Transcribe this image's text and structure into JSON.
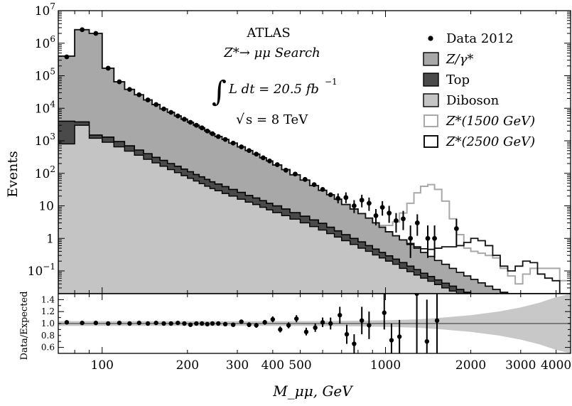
{
  "chart_data": {
    "type": "step-histogram",
    "x_scale": "log",
    "xlabel": "M_μμ, GeV",
    "xlim": [
      70,
      4500
    ],
    "x_ticks": [
      {
        "v": 100,
        "label": "100"
      },
      {
        "v": 200,
        "label": "200"
      },
      {
        "v": 300,
        "label": "300"
      },
      {
        "v": 400,
        "label": "400"
      },
      {
        "v": 500,
        "label": "500"
      },
      {
        "v": 1000,
        "label": "1000"
      },
      {
        "v": 2000,
        "label": "2000"
      },
      {
        "v": 3000,
        "label": "3000"
      },
      {
        "v": 4000,
        "label": "4000"
      }
    ],
    "top_panel": {
      "ylabel": "Events",
      "y_scale": "log",
      "ylim": [
        0.02,
        10000000
      ],
      "y_ticks": [
        {
          "v": 10000000,
          "base": "10",
          "exp": "7"
        },
        {
          "v": 1000000,
          "base": "10",
          "exp": "6"
        },
        {
          "v": 100000,
          "base": "10",
          "exp": "5"
        },
        {
          "v": 10000,
          "base": "10",
          "exp": "4"
        },
        {
          "v": 1000,
          "base": "10",
          "exp": "3"
        },
        {
          "v": 100,
          "base": "10",
          "exp": "2"
        },
        {
          "v": 10,
          "base": "10",
          "exp": ""
        },
        {
          "v": 1,
          "base": "1",
          "exp": ""
        },
        {
          "v": 0.1,
          "base": "10",
          "exp": "−1"
        }
      ],
      "annotation": {
        "experiment": "ATLAS",
        "search_title": "Z*→ μμ Search",
        "lumi_lhs": "L dt = 20.5 fb",
        "lumi_exp": "−1",
        "energy": "s = 8 TeV",
        "integral_symbol": "∫",
        "sqrt_symbol": "√"
      },
      "legend": [
        {
          "label": "Data 2012",
          "kind": "marker"
        },
        {
          "label": "Z/γ*",
          "kind": "fill",
          "color": "#a8a8a8"
        },
        {
          "label": "Top",
          "kind": "fill",
          "color": "#4a4a4a"
        },
        {
          "label": "Diboson",
          "kind": "fill",
          "color": "#c4c4c4"
        },
        {
          "label": "Z*(1500 GeV)",
          "kind": "line",
          "color": "#a8a8a8"
        },
        {
          "label": "Z*(2500 GeV)",
          "kind": "line",
          "color": "#111111"
        }
      ],
      "legend_position": "top-right",
      "bin_edges": [
        70,
        80,
        90,
        100,
        110,
        120,
        130,
        140,
        150,
        160,
        170,
        180,
        190,
        200,
        210,
        220,
        230,
        240,
        250,
        265,
        280,
        300,
        320,
        340,
        360,
        380,
        400,
        430,
        460,
        500,
        540,
        580,
        620,
        660,
        700,
        750,
        800,
        850,
        900,
        950,
        1000,
        1060,
        1120,
        1190,
        1260,
        1330,
        1410,
        1490,
        1580,
        1680,
        1780,
        1890,
        2000,
        2120,
        2250,
        2390,
        2540,
        2700,
        2870,
        3050,
        3240,
        3440,
        3650,
        3880,
        4120,
        4500
      ],
      "series": [
        {
          "name": "Diboson",
          "values": [
            800,
            3000,
            1200,
            900,
            650,
            480,
            360,
            270,
            210,
            165,
            130,
            105,
            85,
            70,
            58,
            48,
            40,
            34,
            29,
            24,
            20,
            16,
            13,
            11,
            9,
            7.5,
            6.2,
            5,
            3.9,
            3,
            2.3,
            1.8,
            1.4,
            1.1,
            0.85,
            0.65,
            0.5,
            0.4,
            0.31,
            0.25,
            0.2,
            0.16,
            0.12,
            0.095,
            0.075,
            0.06,
            0.048,
            0.038,
            0.03,
            0.024,
            0.02,
            0.018,
            0.016,
            0.015,
            0.015,
            0.015,
            0.015,
            0.015,
            0.015,
            0.015,
            0.015,
            0.015,
            0.015,
            0.015,
            0.015
          ]
        },
        {
          "name": "Top",
          "values": [
            4000,
            3800,
            1500,
            1300,
            950,
            700,
            520,
            400,
            310,
            250,
            200,
            165,
            135,
            112,
            92,
            78,
            65,
            55,
            47,
            39,
            32,
            26,
            21,
            17.5,
            14.5,
            12,
            10,
            8,
            6.2,
            4.8,
            3.7,
            2.9,
            2.2,
            1.7,
            1.3,
            1,
            0.78,
            0.6,
            0.47,
            0.37,
            0.29,
            0.23,
            0.18,
            0.14,
            0.11,
            0.085,
            0.067,
            0.053,
            0.042,
            0.034,
            0.027,
            0.022,
            0.018,
            0.016,
            0.015,
            0.015,
            0.015,
            0.015,
            0.015,
            0.015,
            0.015,
            0.015,
            0.015,
            0.015,
            0.015
          ]
        },
        {
          "name": "Z/γ*",
          "values": [
            400000,
            2600000,
            2000000,
            170000,
            65000,
            38000,
            26000,
            18000,
            13000,
            9500,
            7500,
            5800,
            4600,
            3700,
            3000,
            2500,
            2000,
            1650,
            1350,
            1100,
            850,
            650,
            500,
            390,
            300,
            240,
            180,
            130,
            90,
            62,
            42,
            30,
            22,
            16,
            11,
            8,
            5.8,
            4.2,
            3,
            2.2,
            1.6,
            1.2,
            0.9,
            0.65,
            0.5,
            0.37,
            0.28,
            0.21,
            0.16,
            0.12,
            0.09,
            0.07,
            0.055,
            0.043,
            0.034,
            0.027,
            0.022,
            0.018,
            0.016,
            0.015,
            0.015,
            0.015,
            0.015,
            0.015,
            0.015
          ]
        },
        {
          "name": "Z*(1500 GeV)",
          "kind": "line-only",
          "values": [
            400000,
            2600000,
            2000000,
            170000,
            65000,
            38000,
            26000,
            18000,
            13000,
            9500,
            7500,
            5800,
            4600,
            3700,
            3000,
            2500,
            2000,
            1650,
            1350,
            1100,
            850,
            650,
            500,
            390,
            300,
            240,
            180,
            130,
            90,
            62,
            42,
            30,
            22,
            16,
            11,
            8,
            5.8,
            4.2,
            3,
            2.5,
            2.5,
            3.2,
            6,
            12,
            25,
            40,
            45,
            32,
            14,
            4,
            1.3,
            0.5,
            0.4,
            0.35,
            0.3,
            0.25,
            0.12,
            0.07,
            0.04,
            0.08,
            0.12,
            0.12,
            0.12,
            0.12,
            0.05
          ]
        },
        {
          "name": "Z*(2500 GeV)",
          "kind": "line-only",
          "values": [
            400000,
            2600000,
            2000000,
            170000,
            65000,
            38000,
            26000,
            18000,
            13000,
            9500,
            7500,
            5800,
            4600,
            3700,
            3000,
            2500,
            2000,
            1650,
            1350,
            1100,
            850,
            650,
            500,
            390,
            300,
            240,
            180,
            130,
            90,
            62,
            42,
            30,
            22,
            16,
            11,
            8,
            5.8,
            4.2,
            3,
            2.2,
            1.6,
            1.2,
            0.9,
            0.7,
            0.55,
            0.48,
            0.46,
            0.5,
            0.55,
            0.55,
            0.6,
            0.75,
            1,
            0.85,
            0.6,
            0.3,
            0.14,
            0.1,
            0.14,
            0.2,
            0.18,
            0.08,
            0.06,
            0.05,
            0.02
          ]
        }
      ],
      "data_points": [
        {
          "x": 75,
          "y": 380000
        },
        {
          "x": 85,
          "y": 2600000
        },
        {
          "x": 95,
          "y": 2000000
        },
        {
          "x": 105,
          "y": 170000
        },
        {
          "x": 115,
          "y": 65000
        },
        {
          "x": 125,
          "y": 38000
        },
        {
          "x": 135,
          "y": 26000
        },
        {
          "x": 145,
          "y": 18000
        },
        {
          "x": 155,
          "y": 13000
        },
        {
          "x": 165,
          "y": 9500
        },
        {
          "x": 175,
          "y": 7500
        },
        {
          "x": 185,
          "y": 5800
        },
        {
          "x": 195,
          "y": 4600
        },
        {
          "x": 205,
          "y": 3700
        },
        {
          "x": 215,
          "y": 3000
        },
        {
          "x": 225,
          "y": 2500
        },
        {
          "x": 235,
          "y": 2000
        },
        {
          "x": 245,
          "y": 1650
        },
        {
          "x": 257,
          "y": 1350
        },
        {
          "x": 272,
          "y": 1100
        },
        {
          "x": 290,
          "y": 850
        },
        {
          "x": 310,
          "y": 650
        },
        {
          "x": 330,
          "y": 500
        },
        {
          "x": 350,
          "y": 390
        },
        {
          "x": 370,
          "y": 300
        },
        {
          "x": 390,
          "y": 240
        },
        {
          "x": 415,
          "y": 185
        },
        {
          "x": 445,
          "y": 125
        },
        {
          "x": 480,
          "y": 95
        },
        {
          "x": 520,
          "y": 65
        },
        {
          "x": 560,
          "y": 45
        },
        {
          "x": 600,
          "y": 32
        },
        {
          "x": 640,
          "y": 22
        },
        {
          "x": 680,
          "y": 17,
          "err": [
            12,
            24
          ]
        },
        {
          "x": 725,
          "y": 18,
          "err": [
            12,
            26
          ]
        },
        {
          "x": 775,
          "y": 10,
          "err": [
            6,
            15
          ]
        },
        {
          "x": 825,
          "y": 15,
          "err": [
            9,
            22
          ]
        },
        {
          "x": 875,
          "y": 12,
          "err": [
            7,
            18
          ]
        },
        {
          "x": 925,
          "y": 5,
          "err": [
            2.5,
            8
          ]
        },
        {
          "x": 975,
          "y": 9,
          "err": [
            5,
            14
          ]
        },
        {
          "x": 1030,
          "y": 6,
          "err": [
            3,
            10
          ]
        },
        {
          "x": 1090,
          "y": 3.5,
          "err": [
            1.5,
            6
          ]
        },
        {
          "x": 1155,
          "y": 4,
          "err": [
            1.8,
            7
          ]
        },
        {
          "x": 1225,
          "y": 1,
          "err": [
            0.25,
            2.5
          ]
        },
        {
          "x": 1295,
          "y": 3,
          "err": [
            1.2,
            5.5
          ]
        },
        {
          "x": 1410,
          "y": 1,
          "err": [
            0.25,
            2.5
          ]
        },
        {
          "x": 1490,
          "y": 1,
          "err": [
            0.25,
            2.5
          ]
        },
        {
          "x": 1780,
          "y": 2,
          "err": [
            0.6,
            4
          ]
        }
      ]
    },
    "bottom_panel": {
      "ylabel": "Data/Expected",
      "ylim": [
        0.5,
        1.5
      ],
      "y_ticks": [
        {
          "v": 1.4,
          "label": "1.4"
        },
        {
          "v": 1.2,
          "label": "1.2"
        },
        {
          "v": 1.0,
          "label": "1.0"
        },
        {
          "v": 0.8,
          "label": "0.8"
        },
        {
          "v": 0.6,
          "label": "0.6"
        }
      ],
      "reference_line": 1.0,
      "uncertainty_band": {
        "x": [
          70,
          500,
          700,
          1000,
          1300,
          1600,
          2000,
          2500,
          3000,
          3500,
          4000,
          4500
        ],
        "low": [
          0.96,
          0.96,
          0.955,
          0.945,
          0.93,
          0.9,
          0.86,
          0.8,
          0.73,
          0.65,
          0.56,
          0.5
        ],
        "high": [
          1.04,
          1.04,
          1.045,
          1.055,
          1.07,
          1.1,
          1.14,
          1.2,
          1.27,
          1.35,
          1.44,
          1.5
        ]
      },
      "ratio_points": [
        {
          "x": 75,
          "y": 1.02
        },
        {
          "x": 85,
          "y": 1.01
        },
        {
          "x": 95,
          "y": 1.01
        },
        {
          "x": 105,
          "y": 1.0
        },
        {
          "x": 115,
          "y": 1.01
        },
        {
          "x": 125,
          "y": 1.0
        },
        {
          "x": 135,
          "y": 1.01
        },
        {
          "x": 145,
          "y": 1.0
        },
        {
          "x": 155,
          "y": 1.01
        },
        {
          "x": 165,
          "y": 1.0
        },
        {
          "x": 175,
          "y": 1.0
        },
        {
          "x": 185,
          "y": 1.01
        },
        {
          "x": 195,
          "y": 1.0
        },
        {
          "x": 205,
          "y": 0.98
        },
        {
          "x": 215,
          "y": 1.0
        },
        {
          "x": 225,
          "y": 1.0
        },
        {
          "x": 235,
          "y": 0.99
        },
        {
          "x": 245,
          "y": 1.0
        },
        {
          "x": 257,
          "y": 1.0
        },
        {
          "x": 272,
          "y": 0.99
        },
        {
          "x": 290,
          "y": 0.98
        },
        {
          "x": 310,
          "y": 1.03,
          "err": [
            1.0,
            1.06
          ]
        },
        {
          "x": 330,
          "y": 0.98,
          "err": [
            0.94,
            1.02
          ]
        },
        {
          "x": 350,
          "y": 0.97,
          "err": [
            0.93,
            1.01
          ]
        },
        {
          "x": 375,
          "y": 1.02,
          "err": [
            0.98,
            1.06
          ]
        },
        {
          "x": 400,
          "y": 1.07,
          "err": [
            1.02,
            1.12
          ]
        },
        {
          "x": 425,
          "y": 0.9,
          "err": [
            0.85,
            0.95
          ]
        },
        {
          "x": 455,
          "y": 0.97,
          "err": [
            0.92,
            1.02
          ]
        },
        {
          "x": 485,
          "y": 1.08,
          "err": [
            1.02,
            1.14
          ]
        },
        {
          "x": 525,
          "y": 0.86,
          "err": [
            0.8,
            0.93
          ]
        },
        {
          "x": 565,
          "y": 0.93,
          "err": [
            0.86,
            1.0
          ]
        },
        {
          "x": 600,
          "y": 1.02,
          "err": [
            0.94,
            1.1
          ]
        },
        {
          "x": 640,
          "y": 1.0,
          "err": [
            0.9,
            1.1
          ]
        },
        {
          "x": 690,
          "y": 1.14,
          "err": [
            1.0,
            1.28
          ]
        },
        {
          "x": 730,
          "y": 0.82,
          "err": [
            0.66,
            0.98
          ]
        },
        {
          "x": 775,
          "y": 0.66,
          "err": [
            0.5,
            0.82
          ]
        },
        {
          "x": 825,
          "y": 1.05,
          "err": [
            0.82,
            1.28
          ]
        },
        {
          "x": 875,
          "y": 0.97,
          "err": [
            0.74,
            1.2
          ]
        },
        {
          "x": 990,
          "y": 1.18,
          "err": [
            0.9,
            1.5
          ]
        },
        {
          "x": 1050,
          "y": 0.72,
          "err": [
            0.45,
            1.0
          ]
        },
        {
          "x": 1120,
          "y": 0.78,
          "err": [
            0.5,
            1.06
          ]
        },
        {
          "x": 1290,
          "y": 1.5,
          "err": [
            0.5,
            1.5
          ]
        },
        {
          "x": 1400,
          "y": 0.7,
          "err": [
            0.5,
            1.4
          ]
        },
        {
          "x": 1520,
          "y": 1.05,
          "err": [
            0.5,
            1.5
          ]
        }
      ]
    },
    "colors": {
      "zgamma": "#a8a8a8",
      "top": "#4a4a4a",
      "diboson": "#c4c4c4",
      "z1500": "#a8a8a8",
      "z2500": "#111111",
      "band": "#c8c8c8",
      "refline": "#707070"
    }
  }
}
